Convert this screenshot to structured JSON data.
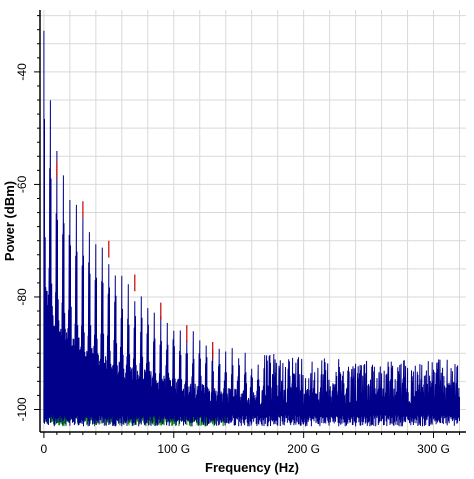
{
  "chart_data": {
    "type": "line",
    "title": "",
    "xlabel": "Frequency (Hz)",
    "ylabel": "Power (dBm)",
    "xlim": [
      -3,
      325
    ],
    "ylim": [
      -104,
      -29
    ],
    "x_ticks": [
      {
        "value": 0,
        "label": "0"
      },
      {
        "value": 100,
        "label": "100 G"
      },
      {
        "value": 200,
        "label": "200 G"
      },
      {
        "value": 300,
        "label": "300 G"
      }
    ],
    "y_ticks": [
      {
        "value": -100,
        "label": "-100"
      },
      {
        "value": -80,
        "label": "-80"
      },
      {
        "value": -60,
        "label": "-60"
      },
      {
        "value": -40,
        "label": "-40"
      }
    ],
    "x_unit_note": "x values in GHz",
    "grid": true,
    "series": [
      {
        "color": "#00008b",
        "envelope_peaks": {
          "x": [
            0,
            5,
            10,
            15,
            20,
            25,
            30,
            35,
            40,
            45,
            50,
            55,
            60,
            65,
            70,
            75,
            80,
            85,
            90,
            95,
            100,
            105,
            110,
            115,
            120,
            125,
            130,
            135,
            140,
            145,
            150,
            160,
            180,
            200,
            220,
            250,
            280,
            300,
            320
          ],
          "y": [
            -30,
            -45,
            -53,
            -57,
            -60,
            -62,
            -64,
            -67,
            -69,
            -71,
            -72,
            -74,
            -76,
            -77,
            -78,
            -79,
            -80,
            -81,
            -82,
            -83,
            -84,
            -85,
            -86,
            -86,
            -87,
            -87,
            -88,
            -88,
            -88,
            -89,
            -89,
            -90,
            -90,
            -90,
            -91,
            -91,
            -91,
            -91,
            -91
          ]
        },
        "noise_floor_db": -100
      },
      {
        "color": "#cc0000",
        "note": "partially hidden behind blue trace, visible at peaks",
        "envelope_peaks": {
          "x": [
            10,
            30,
            50,
            70,
            90,
            110,
            130
          ],
          "y": [
            -56,
            -63,
            -70,
            -76,
            -81,
            -85,
            -88
          ]
        }
      },
      {
        "color": "#008000",
        "envelope_peaks": {
          "x": [
            0,
            10,
            20,
            30,
            40,
            50,
            60,
            70,
            80,
            90,
            100,
            120,
            140
          ],
          "y": [
            -91,
            -92,
            -91,
            -92,
            -93,
            -93,
            -94,
            -95,
            -96,
            -97,
            -98,
            -99,
            -100
          ]
        },
        "noise_floor_db": -100
      }
    ]
  }
}
